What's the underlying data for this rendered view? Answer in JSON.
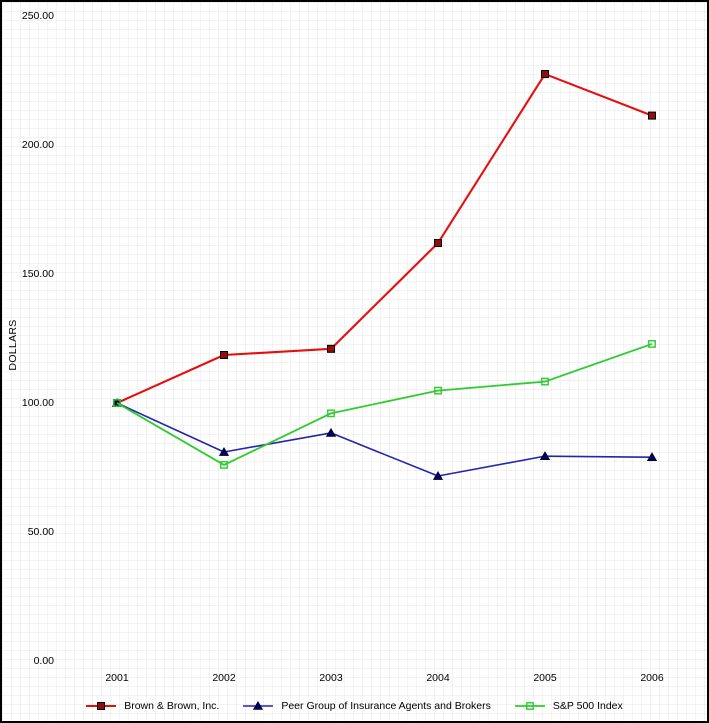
{
  "chart_data": {
    "type": "line",
    "title": "",
    "ylabel": "DOLLARS",
    "xlabel": "",
    "categories": [
      "2001",
      "2002",
      "2003",
      "2004",
      "2005",
      "2006"
    ],
    "series": [
      {
        "name": "Brown & Brown, Inc.",
        "line_color": "#e60f0f",
        "marker": "square-filled",
        "marker_fill": "#8f0f0f",
        "marker_edge": "#000000",
        "values": [
          100.0,
          118.6,
          121.0,
          162.0,
          227.5,
          211.4
        ]
      },
      {
        "name": "Peer Group of Insurance Agents and Brokers",
        "line_color": "#2424ad",
        "marker": "triangle-filled",
        "marker_fill": "#00006b",
        "marker_edge": "#000014",
        "values": [
          100.0,
          81.0,
          88.4,
          71.7,
          79.4,
          79.0
        ]
      },
      {
        "name": "S&P 500 Index",
        "line_color": "#2ecc2e",
        "marker": "square-open",
        "marker_fill": "none",
        "marker_edge": "#2ecc2e",
        "values": [
          100.0,
          76.0,
          96.0,
          104.8,
          108.3,
          122.9
        ]
      }
    ],
    "y_ticks": [
      0,
      50,
      100,
      150,
      200,
      250
    ],
    "y_tick_labels": [
      "0.00",
      "50.00",
      "100.00",
      "150.00",
      "200.00",
      "250.00"
    ],
    "ylim": [
      0,
      250
    ],
    "grid": "faint-gray-background-grid",
    "legend_position": "bottom-center"
  }
}
